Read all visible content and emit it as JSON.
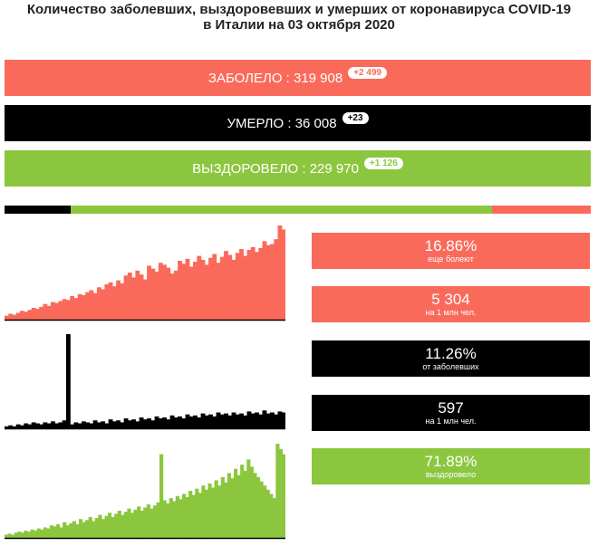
{
  "title": {
    "line1": "Количество заболевших, выздоровевших и умерших от коронавируса COVID-19",
    "line2": "в Италии на 03 октября 2020"
  },
  "colors": {
    "cases": "#fa6a5b",
    "deaths": "#000000",
    "recovered": "#8cc63f"
  },
  "bars": {
    "cases": {
      "label": "ЗАБОЛЕЛО : 319 908",
      "delta": "+2 499"
    },
    "deaths": {
      "label": "УМЕРЛО : 36 008",
      "delta": "+23"
    },
    "recovered": {
      "label": "ВЫЗДОРОВЕЛО : 229 970",
      "delta": "+1 126"
    }
  },
  "proportion": {
    "deaths_pct": 11.26,
    "recovered_pct": 71.89,
    "active_pct": 16.86
  },
  "stats": {
    "active_pct": {
      "value": "16.86%",
      "sub": "еще болеют"
    },
    "cases_per_million": {
      "value": "5 304",
      "sub": "на 1 млн чел."
    },
    "death_rate": {
      "value": "11.26%",
      "sub": "от заболевших"
    },
    "deaths_per_million": {
      "value": "597",
      "sub": "на 1 млн чел."
    },
    "recovered_pct": {
      "value": "71.89%",
      "sub": "выздоровело"
    }
  },
  "chart_data": [
    {
      "type": "area",
      "series": [
        {
          "values": [
            4,
            6,
            5,
            7,
            9,
            8,
            10,
            12,
            11,
            13,
            16,
            14,
            18,
            17,
            19,
            21,
            20,
            24,
            22,
            26,
            25,
            28,
            30,
            27,
            33,
            31,
            36,
            38,
            34,
            40,
            37,
            45,
            48,
            43,
            50,
            46,
            41,
            55,
            52,
            49,
            58,
            56,
            53,
            47,
            50,
            60,
            57,
            62,
            54,
            59,
            65,
            61,
            56,
            63,
            67,
            58,
            64,
            70,
            66,
            61,
            68,
            72,
            65,
            71,
            74,
            69,
            73,
            80,
            76,
            77,
            82,
            96,
            92
          ]
        }
      ]
    },
    {
      "type": "area",
      "series": [
        {
          "values": [
            2,
            3,
            2,
            4,
            3,
            5,
            4,
            6,
            5,
            4,
            6,
            5,
            7,
            5,
            6,
            8,
            95,
            4,
            6,
            5,
            7,
            6,
            5,
            8,
            6,
            7,
            5,
            9,
            7,
            8,
            6,
            10,
            8,
            9,
            7,
            11,
            9,
            10,
            8,
            12,
            10,
            11,
            9,
            13,
            11,
            12,
            10,
            14,
            12,
            13,
            11,
            15,
            13,
            14,
            12,
            16,
            14,
            15,
            13,
            16,
            14,
            15,
            13,
            17,
            15,
            16,
            14,
            18,
            15,
            16,
            14,
            17,
            16
          ]
        }
      ]
    },
    {
      "type": "area",
      "series": [
        {
          "values": [
            3,
            4,
            3,
            5,
            6,
            5,
            7,
            6,
            8,
            7,
            9,
            8,
            10,
            9,
            12,
            11,
            13,
            10,
            15,
            12,
            14,
            16,
            13,
            18,
            15,
            17,
            20,
            16,
            19,
            22,
            18,
            21,
            24,
            20,
            23,
            26,
            22,
            25,
            28,
            24,
            27,
            30,
            26,
            29,
            32,
            28,
            31,
            34,
            80,
            36,
            33,
            38,
            35,
            40,
            37,
            42,
            39,
            45,
            41,
            47,
            43,
            50,
            46,
            52,
            48,
            55,
            50,
            58,
            53,
            62,
            57,
            66,
            60,
            70,
            64,
            75,
            68,
            62,
            58,
            54,
            50,
            46,
            42,
            38,
            90,
            85,
            80
          ]
        }
      ]
    }
  ]
}
